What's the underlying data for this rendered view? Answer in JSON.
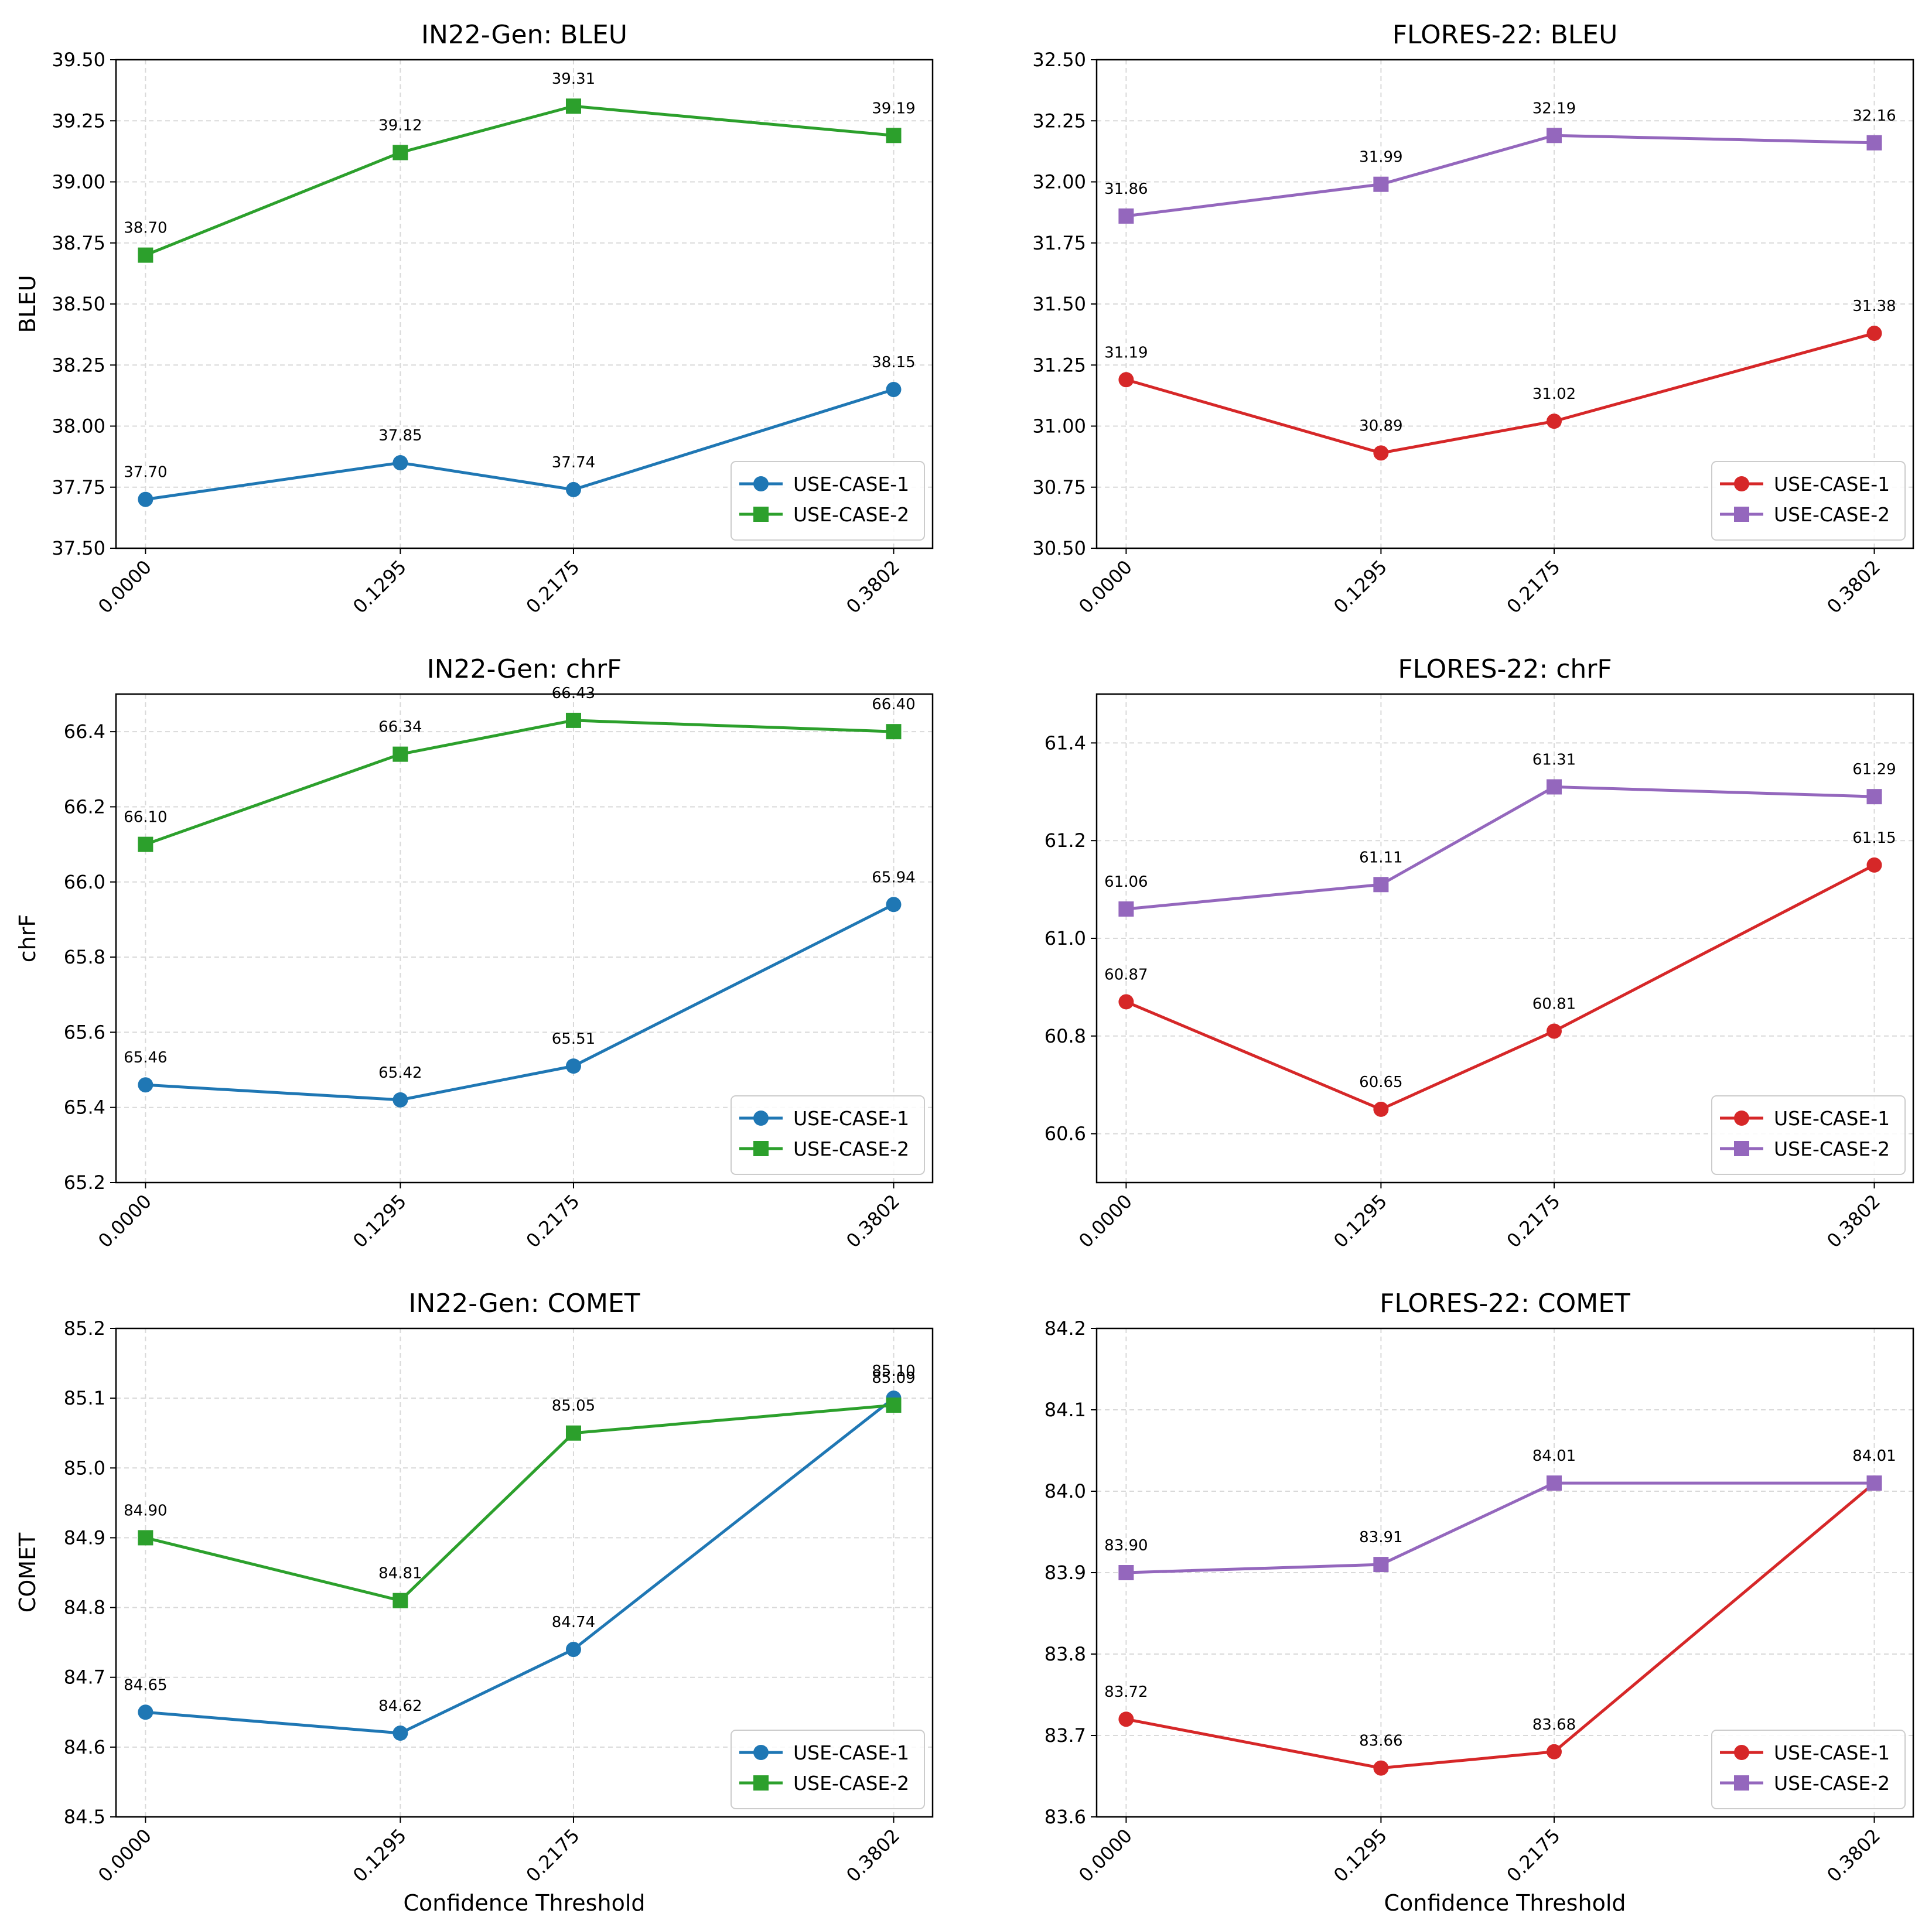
{
  "chart_data": [
    {
      "type": "line",
      "title": "IN22-Gen: BLEU",
      "ylabel": "BLEU",
      "xlabel": "",
      "x": [
        "0.0000",
        "0.1295",
        "0.2175",
        "0.3802"
      ],
      "x_values": [
        0.0,
        0.1295,
        0.2175,
        0.3802
      ],
      "ylim": [
        37.5,
        39.5
      ],
      "yticks": [
        "37.50",
        "37.75",
        "38.00",
        "38.25",
        "38.50",
        "38.75",
        "39.00",
        "39.25",
        "39.50"
      ],
      "legend": "lower-right",
      "grid": true,
      "series": [
        {
          "name": "USE-CASE-1",
          "color": "#1f77b4",
          "marker": "circle",
          "values": [
            37.7,
            37.85,
            37.74,
            38.15
          ],
          "labels": [
            "37.70",
            "37.85",
            "37.74",
            "38.15"
          ]
        },
        {
          "name": "USE-CASE-2",
          "color": "#2ca02c",
          "marker": "square",
          "values": [
            38.7,
            39.12,
            39.31,
            39.19
          ],
          "labels": [
            "38.70",
            "39.12",
            "39.31",
            "39.19"
          ]
        }
      ]
    },
    {
      "type": "line",
      "title": "FLORES-22: BLEU",
      "ylabel": "",
      "xlabel": "",
      "x": [
        "0.0000",
        "0.1295",
        "0.2175",
        "0.3802"
      ],
      "x_values": [
        0.0,
        0.1295,
        0.2175,
        0.3802
      ],
      "ylim": [
        30.5,
        32.5
      ],
      "yticks": [
        "30.50",
        "30.75",
        "31.00",
        "31.25",
        "31.50",
        "31.75",
        "32.00",
        "32.25",
        "32.50"
      ],
      "legend": "lower-right",
      "grid": true,
      "series": [
        {
          "name": "USE-CASE-1",
          "color": "#d62728",
          "marker": "circle",
          "values": [
            31.19,
            30.89,
            31.02,
            31.38
          ],
          "labels": [
            "31.19",
            "30.89",
            "31.02",
            "31.38"
          ]
        },
        {
          "name": "USE-CASE-2",
          "color": "#9467bd",
          "marker": "square",
          "values": [
            31.86,
            31.99,
            32.19,
            32.16
          ],
          "labels": [
            "31.86",
            "31.99",
            "32.19",
            "32.16"
          ]
        }
      ]
    },
    {
      "type": "line",
      "title": "IN22-Gen: chrF",
      "ylabel": "chrF",
      "xlabel": "",
      "x": [
        "0.0000",
        "0.1295",
        "0.2175",
        "0.3802"
      ],
      "x_values": [
        0.0,
        0.1295,
        0.2175,
        0.3802
      ],
      "ylim": [
        65.2,
        66.5
      ],
      "yticks": [
        "65.2",
        "65.4",
        "65.6",
        "65.8",
        "66.0",
        "66.2",
        "66.4"
      ],
      "legend": "lower-right",
      "grid": true,
      "series": [
        {
          "name": "USE-CASE-1",
          "color": "#1f77b4",
          "marker": "circle",
          "values": [
            65.46,
            65.42,
            65.51,
            65.94
          ],
          "labels": [
            "65.46",
            "65.42",
            "65.51",
            "65.94"
          ]
        },
        {
          "name": "USE-CASE-2",
          "color": "#2ca02c",
          "marker": "square",
          "values": [
            66.1,
            66.34,
            66.43,
            66.4
          ],
          "labels": [
            "66.10",
            "66.34",
            "66.43",
            "66.40"
          ]
        }
      ]
    },
    {
      "type": "line",
      "title": "FLORES-22: chrF",
      "ylabel": "",
      "xlabel": "",
      "x": [
        "0.0000",
        "0.1295",
        "0.2175",
        "0.3802"
      ],
      "x_values": [
        0.0,
        0.1295,
        0.2175,
        0.3802
      ],
      "ylim": [
        60.5,
        61.5
      ],
      "yticks": [
        "60.6",
        "60.8",
        "61.0",
        "61.2",
        "61.4"
      ],
      "legend": "lower-right",
      "grid": true,
      "series": [
        {
          "name": "USE-CASE-1",
          "color": "#d62728",
          "marker": "circle",
          "values": [
            60.87,
            60.65,
            60.81,
            61.15
          ],
          "labels": [
            "60.87",
            "60.65",
            "60.81",
            "61.15"
          ]
        },
        {
          "name": "USE-CASE-2",
          "color": "#9467bd",
          "marker": "square",
          "values": [
            61.06,
            61.11,
            61.31,
            61.29
          ],
          "labels": [
            "61.06",
            "61.11",
            "61.31",
            "61.29"
          ]
        }
      ]
    },
    {
      "type": "line",
      "title": "IN22-Gen: COMET",
      "ylabel": "COMET",
      "xlabel": "Confidence Threshold",
      "x": [
        "0.0000",
        "0.1295",
        "0.2175",
        "0.3802"
      ],
      "x_values": [
        0.0,
        0.1295,
        0.2175,
        0.3802
      ],
      "ylim": [
        84.5,
        85.2
      ],
      "yticks": [
        "84.5",
        "84.6",
        "84.7",
        "84.8",
        "84.9",
        "85.0",
        "85.1",
        "85.2"
      ],
      "legend": "lower-right",
      "grid": true,
      "series": [
        {
          "name": "USE-CASE-1",
          "color": "#1f77b4",
          "marker": "circle",
          "values": [
            84.65,
            84.62,
            84.74,
            85.1
          ],
          "labels": [
            "84.65",
            "84.62",
            "84.74",
            "85.10"
          ]
        },
        {
          "name": "USE-CASE-2",
          "color": "#2ca02c",
          "marker": "square",
          "values": [
            84.9,
            84.81,
            85.05,
            85.09
          ],
          "labels": [
            "84.90",
            "84.81",
            "85.05",
            "85.09"
          ]
        }
      ]
    },
    {
      "type": "line",
      "title": "FLORES-22: COMET",
      "ylabel": "",
      "xlabel": "Confidence Threshold",
      "x": [
        "0.0000",
        "0.1295",
        "0.2175",
        "0.3802"
      ],
      "x_values": [
        0.0,
        0.1295,
        0.2175,
        0.3802
      ],
      "ylim": [
        83.6,
        84.2
      ],
      "yticks": [
        "83.6",
        "83.7",
        "83.8",
        "83.9",
        "84.0",
        "84.1",
        "84.2"
      ],
      "legend": "lower-right",
      "grid": true,
      "series": [
        {
          "name": "USE-CASE-1",
          "color": "#d62728",
          "marker": "circle",
          "values": [
            83.72,
            83.66,
            83.68,
            84.01
          ],
          "labels": [
            "83.72",
            "83.66",
            "83.68",
            "84.01"
          ]
        },
        {
          "name": "USE-CASE-2",
          "color": "#9467bd",
          "marker": "square",
          "values": [
            83.9,
            83.91,
            84.01,
            84.01
          ],
          "labels": [
            "83.90",
            "83.91",
            "84.01",
            "84.01"
          ]
        }
      ]
    }
  ]
}
